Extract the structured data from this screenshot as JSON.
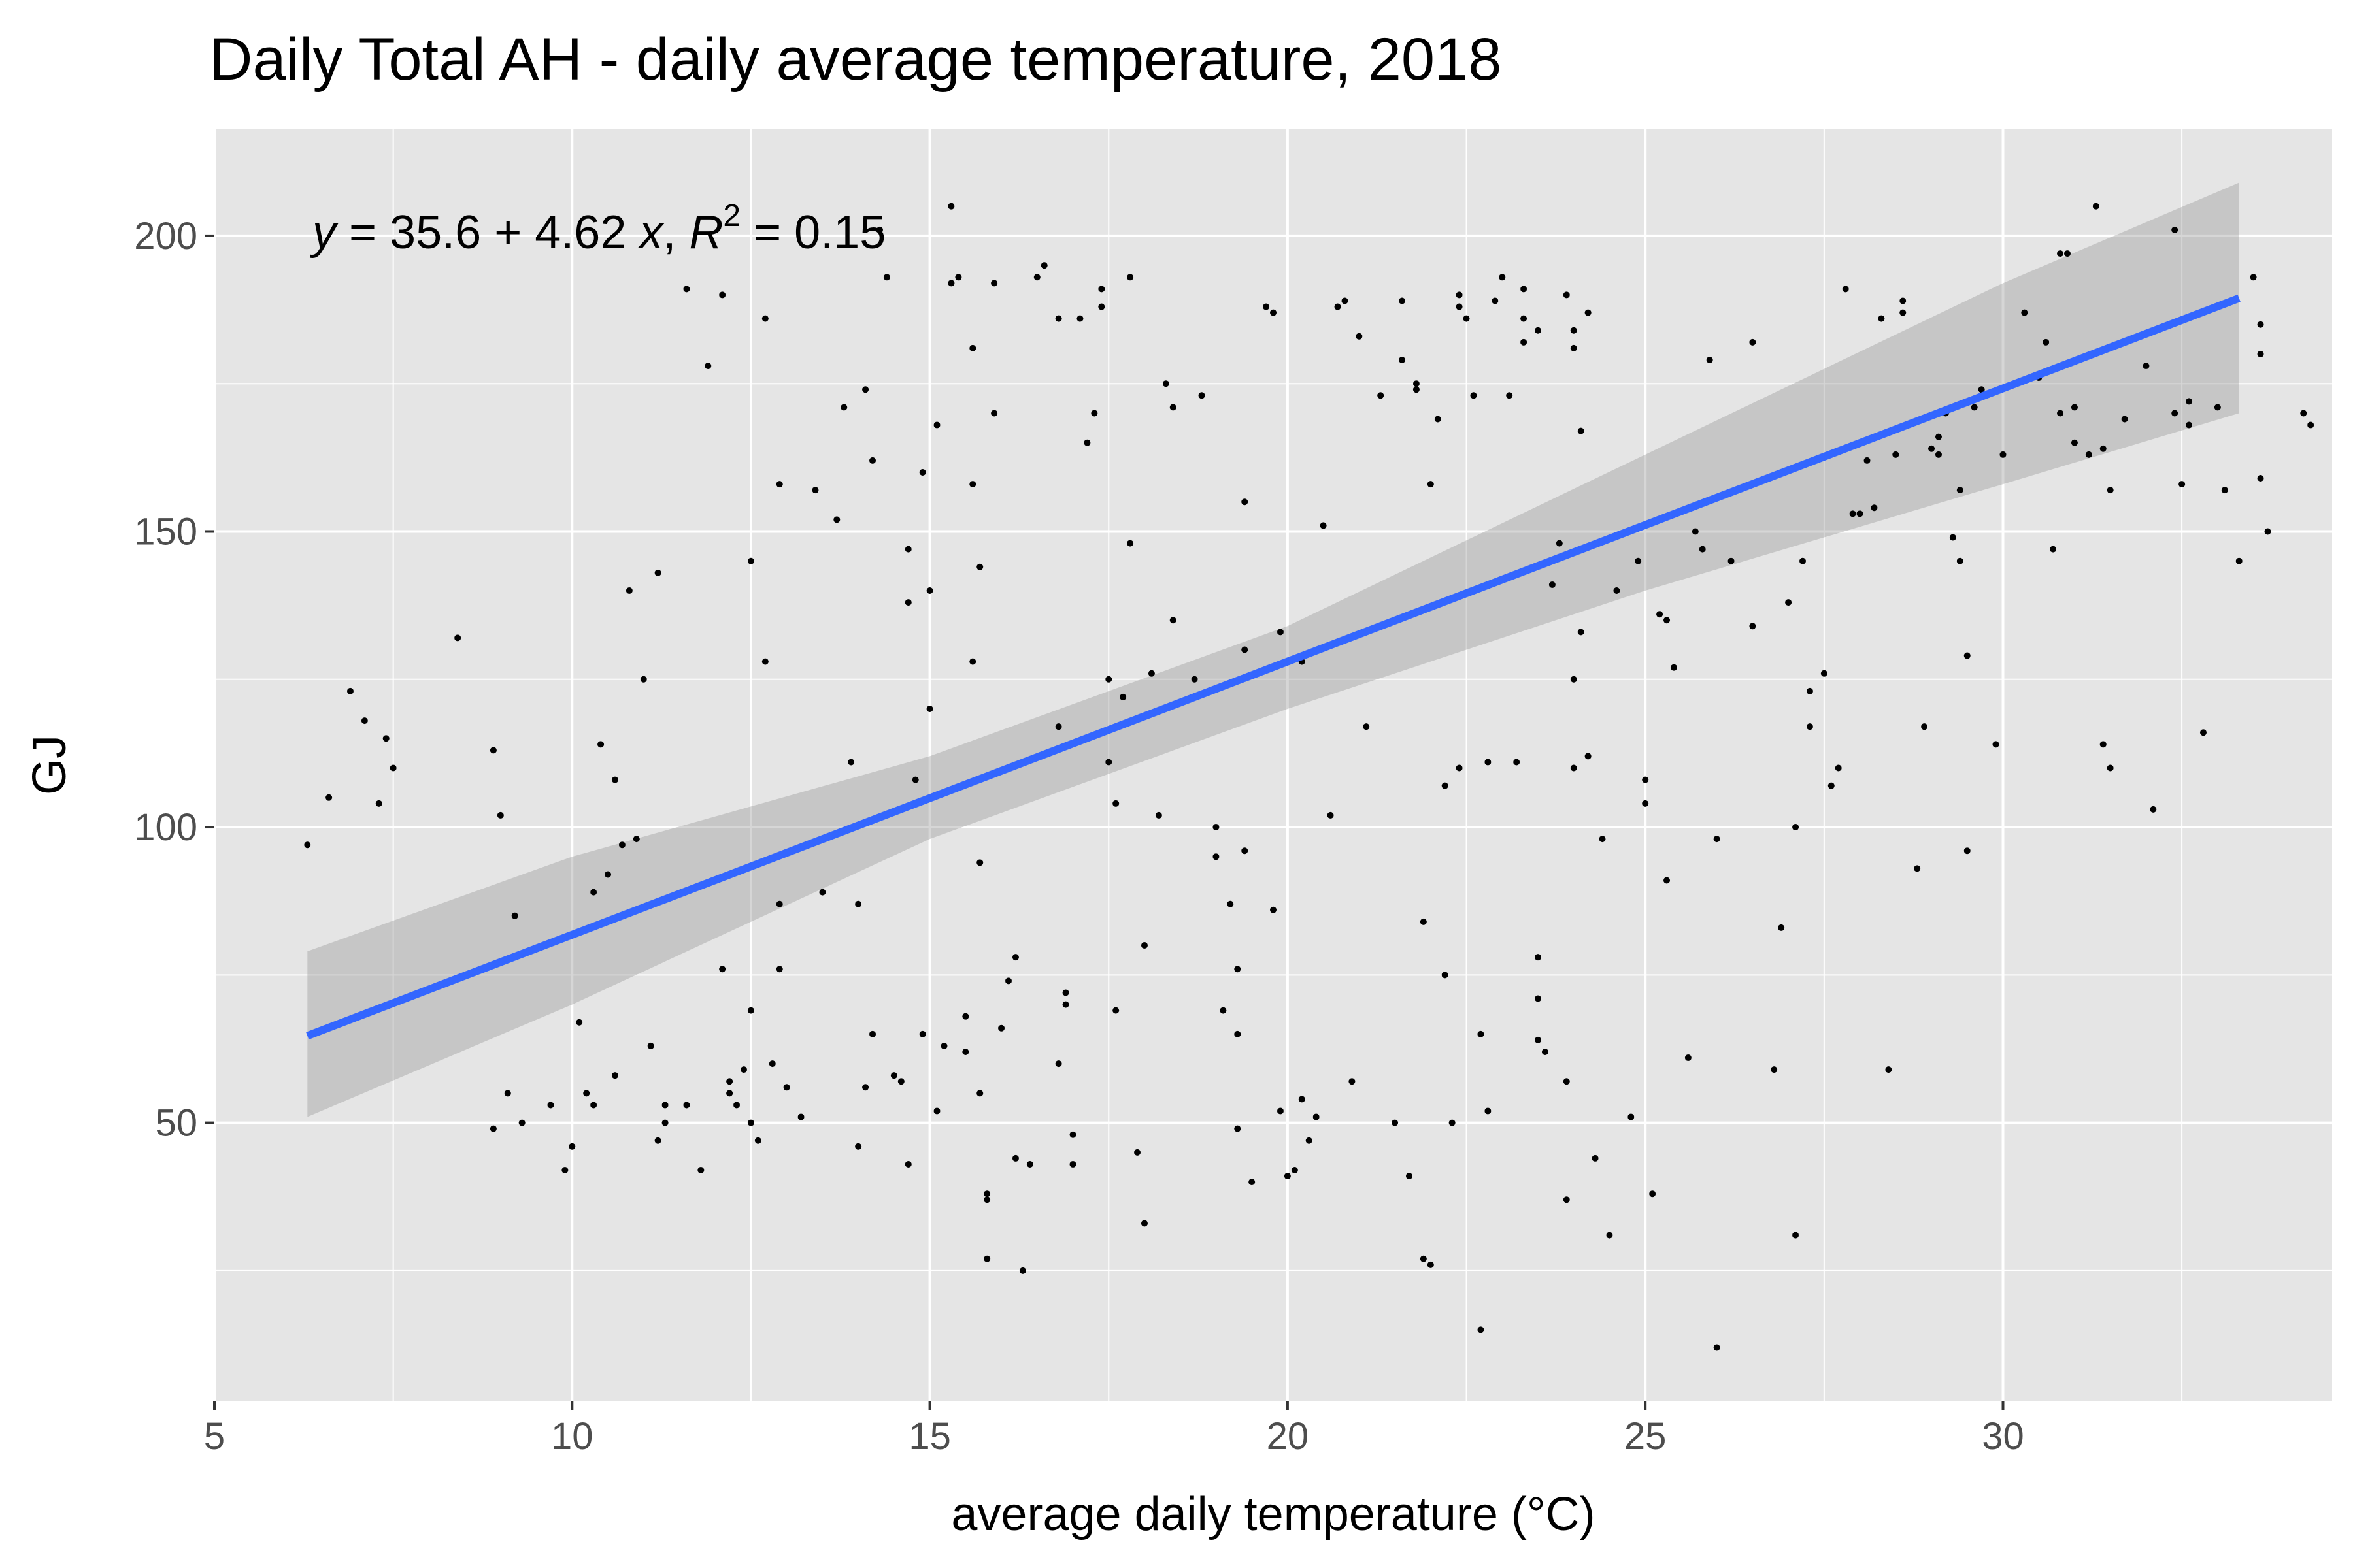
{
  "chart_data": {
    "type": "scatter",
    "title": "Daily Total AH - daily average temperature, 2018",
    "xlabel": "average daily temperature (°C)",
    "ylabel": "GJ",
    "xlim": [
      5,
      34.6
    ],
    "ylim": [
      3,
      218
    ],
    "x_ticks": [
      5,
      10,
      15,
      20,
      25,
      30
    ],
    "y_ticks": [
      50,
      100,
      150,
      200
    ],
    "x_tick_labels": [
      "5",
      "10",
      "15",
      "20",
      "25",
      "30"
    ],
    "y_tick_labels": [
      "50",
      "100",
      "150",
      "200"
    ],
    "grid": true,
    "annotation": {
      "y_var": "y",
      "equals": " = 35.6 + 4.62 ",
      "x_var": "x",
      "comma": ", ",
      "r_var": "R",
      "r_exp": "2",
      "r_value": " = 0.15"
    },
    "fit": {
      "intercept": 35.6,
      "slope": 4.62,
      "x_range": [
        6.3,
        33.3
      ]
    },
    "confidence_band": [
      {
        "x": 6.3,
        "low": 51,
        "high": 79
      },
      {
        "x": 10,
        "low": 70,
        "high": 95
      },
      {
        "x": 15,
        "low": 98,
        "high": 112
      },
      {
        "x": 20,
        "low": 120,
        "high": 134
      },
      {
        "x": 25,
        "low": 140,
        "high": 163
      },
      {
        "x": 30,
        "low": 158,
        "high": 192
      },
      {
        "x": 33.3,
        "low": 170,
        "high": 209
      }
    ],
    "colors": {
      "panel": "#e5e5e5",
      "grid": "#ffffff",
      "point": "#000000",
      "fit_line": "#3366ff",
      "band": "#999999"
    },
    "points": [
      [
        6.3,
        97
      ],
      [
        6.6,
        105
      ],
      [
        6.9,
        123
      ],
      [
        7.1,
        118
      ],
      [
        7.3,
        104
      ],
      [
        7.4,
        115
      ],
      [
        7.5,
        110
      ],
      [
        8.4,
        132
      ],
      [
        8.9,
        113
      ],
      [
        9.0,
        102
      ],
      [
        9.2,
        85
      ],
      [
        8.9,
        49
      ],
      [
        9.1,
        55
      ],
      [
        9.3,
        50
      ],
      [
        9.7,
        53
      ],
      [
        9.9,
        42
      ],
      [
        10.0,
        46
      ],
      [
        10.1,
        67
      ],
      [
        10.2,
        55
      ],
      [
        10.3,
        53
      ],
      [
        10.3,
        89
      ],
      [
        10.4,
        114
      ],
      [
        10.5,
        92
      ],
      [
        10.6,
        108
      ],
      [
        10.6,
        58
      ],
      [
        10.7,
        97
      ],
      [
        10.8,
        140
      ],
      [
        10.9,
        98
      ],
      [
        11.0,
        125
      ],
      [
        11.1,
        63
      ],
      [
        11.2,
        143
      ],
      [
        11.2,
        47
      ],
      [
        11.3,
        53
      ],
      [
        11.3,
        50
      ],
      [
        11.6,
        53
      ],
      [
        11.6,
        191
      ],
      [
        11.8,
        42
      ],
      [
        11.9,
        178
      ],
      [
        12.1,
        76
      ],
      [
        12.1,
        190
      ],
      [
        12.2,
        55
      ],
      [
        12.2,
        57
      ],
      [
        12.3,
        53
      ],
      [
        12.4,
        59
      ],
      [
        12.5,
        50
      ],
      [
        12.5,
        145
      ],
      [
        12.5,
        69
      ],
      [
        12.6,
        47
      ],
      [
        12.7,
        128
      ],
      [
        12.7,
        186
      ],
      [
        12.8,
        60
      ],
      [
        12.9,
        158
      ],
      [
        12.9,
        76
      ],
      [
        12.9,
        87
      ],
      [
        13.0,
        56
      ],
      [
        13.2,
        51
      ],
      [
        13.4,
        157
      ],
      [
        13.5,
        89
      ],
      [
        13.7,
        152
      ],
      [
        13.8,
        171
      ],
      [
        13.9,
        111
      ],
      [
        14.0,
        87
      ],
      [
        14.1,
        174
      ],
      [
        14.1,
        56
      ],
      [
        14.0,
        46
      ],
      [
        14.2,
        162
      ],
      [
        14.2,
        65
      ],
      [
        14.3,
        201
      ],
      [
        14.4,
        193
      ],
      [
        14.5,
        58
      ],
      [
        14.6,
        57
      ],
      [
        14.7,
        43
      ],
      [
        14.7,
        147
      ],
      [
        14.7,
        138
      ],
      [
        14.8,
        108
      ],
      [
        14.9,
        160
      ],
      [
        14.9,
        65
      ],
      [
        15.0,
        120
      ],
      [
        15.0,
        140
      ],
      [
        15.1,
        168
      ],
      [
        15.1,
        52
      ],
      [
        15.2,
        63
      ],
      [
        15.3,
        192
      ],
      [
        15.3,
        205
      ],
      [
        15.4,
        193
      ],
      [
        15.5,
        62
      ],
      [
        15.5,
        68
      ],
      [
        15.6,
        181
      ],
      [
        15.6,
        158
      ],
      [
        15.6,
        128
      ],
      [
        15.7,
        144
      ],
      [
        15.7,
        94
      ],
      [
        15.7,
        55
      ],
      [
        15.8,
        38
      ],
      [
        15.8,
        37
      ],
      [
        15.8,
        27
      ],
      [
        15.9,
        170
      ],
      [
        15.9,
        192
      ],
      [
        16.0,
        66
      ],
      [
        16.1,
        74
      ],
      [
        16.2,
        78
      ],
      [
        16.2,
        44
      ],
      [
        16.3,
        25
      ],
      [
        16.4,
        43
      ],
      [
        16.5,
        193
      ],
      [
        16.6,
        195
      ],
      [
        16.8,
        186
      ],
      [
        16.8,
        117
      ],
      [
        16.8,
        60
      ],
      [
        16.9,
        72
      ],
      [
        16.9,
        70
      ],
      [
        17.0,
        48
      ],
      [
        17.0,
        43
      ],
      [
        17.1,
        186
      ],
      [
        17.2,
        165
      ],
      [
        17.3,
        170
      ],
      [
        17.4,
        188
      ],
      [
        17.4,
        191
      ],
      [
        17.5,
        125
      ],
      [
        17.5,
        111
      ],
      [
        17.6,
        104
      ],
      [
        17.6,
        69
      ],
      [
        17.7,
        122
      ],
      [
        17.8,
        148
      ],
      [
        17.8,
        193
      ],
      [
        17.9,
        45
      ],
      [
        18.0,
        80
      ],
      [
        18.0,
        33
      ],
      [
        18.1,
        126
      ],
      [
        18.2,
        102
      ],
      [
        18.3,
        175
      ],
      [
        18.4,
        171
      ],
      [
        18.4,
        135
      ],
      [
        18.7,
        125
      ],
      [
        18.8,
        173
      ],
      [
        19.0,
        100
      ],
      [
        19.0,
        95
      ],
      [
        19.1,
        69
      ],
      [
        19.2,
        87
      ],
      [
        19.3,
        76
      ],
      [
        19.3,
        65
      ],
      [
        19.3,
        49
      ],
      [
        19.4,
        155
      ],
      [
        19.4,
        130
      ],
      [
        19.4,
        96
      ],
      [
        19.5,
        40
      ],
      [
        19.7,
        188
      ],
      [
        19.8,
        187
      ],
      [
        19.8,
        86
      ],
      [
        19.9,
        133
      ],
      [
        19.9,
        52
      ],
      [
        20.0,
        41
      ],
      [
        20.1,
        42
      ],
      [
        20.2,
        128
      ],
      [
        20.2,
        54
      ],
      [
        20.3,
        47
      ],
      [
        20.4,
        51
      ],
      [
        20.5,
        151
      ],
      [
        20.6,
        102
      ],
      [
        20.7,
        188
      ],
      [
        20.8,
        189
      ],
      [
        20.9,
        57
      ],
      [
        21.0,
        183
      ],
      [
        21.1,
        117
      ],
      [
        21.3,
        173
      ],
      [
        21.5,
        50
      ],
      [
        21.6,
        189
      ],
      [
        21.6,
        179
      ],
      [
        21.7,
        41
      ],
      [
        21.8,
        174
      ],
      [
        21.8,
        175
      ],
      [
        21.9,
        84
      ],
      [
        21.9,
        27
      ],
      [
        22.0,
        26
      ],
      [
        22.0,
        158
      ],
      [
        22.1,
        169
      ],
      [
        22.2,
        75
      ],
      [
        22.2,
        107
      ],
      [
        22.3,
        50
      ],
      [
        22.4,
        188
      ],
      [
        22.4,
        190
      ],
      [
        22.4,
        110
      ],
      [
        22.5,
        186
      ],
      [
        22.6,
        173
      ],
      [
        22.7,
        65
      ],
      [
        22.7,
        15
      ],
      [
        22.8,
        52
      ],
      [
        22.8,
        111
      ],
      [
        22.9,
        189
      ],
      [
        23.0,
        193
      ],
      [
        23.1,
        173
      ],
      [
        23.2,
        111
      ],
      [
        23.3,
        191
      ],
      [
        23.3,
        186
      ],
      [
        23.3,
        182
      ],
      [
        23.5,
        64
      ],
      [
        23.5,
        78
      ],
      [
        23.5,
        71
      ],
      [
        23.5,
        184
      ],
      [
        23.6,
        62
      ],
      [
        23.7,
        141
      ],
      [
        23.8,
        148
      ],
      [
        23.9,
        190
      ],
      [
        23.9,
        57
      ],
      [
        23.9,
        37
      ],
      [
        24.0,
        184
      ],
      [
        24.0,
        181
      ],
      [
        24.0,
        110
      ],
      [
        24.0,
        125
      ],
      [
        24.1,
        133
      ],
      [
        24.1,
        167
      ],
      [
        24.2,
        187
      ],
      [
        24.2,
        112
      ],
      [
        24.3,
        44
      ],
      [
        24.4,
        98
      ],
      [
        24.5,
        31
      ],
      [
        24.6,
        140
      ],
      [
        24.8,
        51
      ],
      [
        24.9,
        145
      ],
      [
        25.0,
        104
      ],
      [
        25.0,
        108
      ],
      [
        25.1,
        38
      ],
      [
        25.2,
        136
      ],
      [
        25.3,
        135
      ],
      [
        25.3,
        91
      ],
      [
        25.4,
        127
      ],
      [
        25.6,
        61
      ],
      [
        25.7,
        150
      ],
      [
        25.8,
        147
      ],
      [
        25.9,
        179
      ],
      [
        26.0,
        12
      ],
      [
        26.0,
        98
      ],
      [
        26.2,
        145
      ],
      [
        26.5,
        182
      ],
      [
        26.5,
        134
      ],
      [
        26.8,
        59
      ],
      [
        26.9,
        83
      ],
      [
        27.0,
        138
      ],
      [
        27.1,
        100
      ],
      [
        27.1,
        31
      ],
      [
        27.2,
        145
      ],
      [
        27.3,
        123
      ],
      [
        27.3,
        117
      ],
      [
        27.5,
        126
      ],
      [
        27.6,
        107
      ],
      [
        27.7,
        110
      ],
      [
        27.8,
        191
      ],
      [
        27.9,
        153
      ],
      [
        28.0,
        153
      ],
      [
        28.1,
        162
      ],
      [
        28.2,
        154
      ],
      [
        28.3,
        186
      ],
      [
        28.4,
        59
      ],
      [
        28.5,
        163
      ],
      [
        28.6,
        187
      ],
      [
        28.6,
        189
      ],
      [
        28.8,
        93
      ],
      [
        28.9,
        117
      ],
      [
        29.0,
        164
      ],
      [
        29.1,
        163
      ],
      [
        29.2,
        170
      ],
      [
        29.3,
        149
      ],
      [
        29.4,
        157
      ],
      [
        29.4,
        145
      ],
      [
        29.5,
        129
      ],
      [
        29.5,
        96
      ],
      [
        29.6,
        171
      ],
      [
        29.7,
        174
      ],
      [
        29.9,
        114
      ],
      [
        30.0,
        163
      ],
      [
        30.3,
        187
      ],
      [
        30.5,
        176
      ],
      [
        30.6,
        182
      ],
      [
        30.7,
        147
      ],
      [
        30.8,
        197
      ],
      [
        30.8,
        170
      ],
      [
        30.9,
        197
      ],
      [
        31.0,
        171
      ],
      [
        31.0,
        165
      ],
      [
        31.2,
        163
      ],
      [
        31.3,
        205
      ],
      [
        31.4,
        114
      ],
      [
        31.4,
        164
      ],
      [
        31.5,
        110
      ],
      [
        31.5,
        157
      ],
      [
        31.7,
        169
      ],
      [
        32.0,
        178
      ],
      [
        32.1,
        103
      ],
      [
        32.4,
        170
      ],
      [
        32.4,
        201
      ],
      [
        32.5,
        158
      ],
      [
        32.6,
        168
      ],
      [
        32.8,
        116
      ],
      [
        33.0,
        171
      ],
      [
        33.1,
        157
      ],
      [
        33.5,
        193
      ],
      [
        33.6,
        180
      ],
      [
        33.6,
        159
      ],
      [
        33.6,
        185
      ],
      [
        33.7,
        150
      ],
      [
        34.2,
        170
      ],
      [
        34.3,
        168
      ],
      [
        29.1,
        166
      ],
      [
        32.6,
        172
      ],
      [
        33.3,
        145
      ]
    ]
  }
}
